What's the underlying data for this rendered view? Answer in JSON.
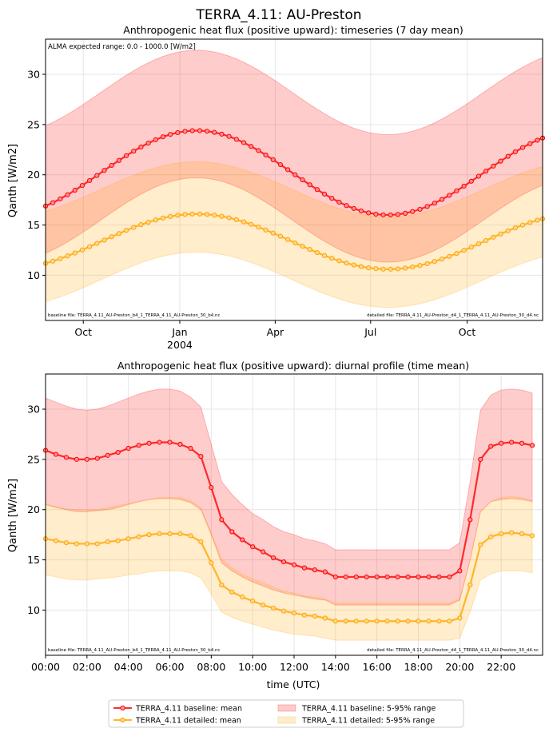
{
  "figure": {
    "suptitle": "TERRA_4.11: AU-Preston",
    "legend": {
      "placement": "bottom-center",
      "entries": [
        {
          "label": "TERRA_4.11 baseline: mean",
          "kind": "line",
          "color": "#ff0000"
        },
        {
          "label": "TERRA_4.11 detailed: mean",
          "kind": "line",
          "color": "#ffa500"
        },
        {
          "label": "TERRA_4.11 baseline: 5-95% range",
          "kind": "band",
          "color": "#ff0000"
        },
        {
          "label": "TERRA_4.11 detailed: 5-95% range",
          "kind": "band",
          "color": "#ffa500"
        }
      ]
    }
  },
  "chart_data": [
    {
      "type": "line",
      "title": "Anthropogenic heat flux (positive upward): timeseries (7 day mean)",
      "xlabel": "",
      "ylabel": "Qanth [W/m2]",
      "annotation": "ALMA expected range: 0.0 - 1000.0 [W/m2]",
      "baseline_file": "baseline file: TERRA_4.11_AU-Preston_b4_1_TERRA_4.11_AU-Preston_30_b4.nc",
      "detailed_file": "detailed file: TERRA_4.11_AU-Preston_d4_1_TERRA_4.11_AU-Preston_30_d4.nc",
      "x_unit": "days since 2003-08-26",
      "xlim": [
        0,
        474
      ],
      "ylim": [
        5.5,
        33.5
      ],
      "yticks": [
        10,
        15,
        20,
        25,
        30
      ],
      "xticks": [
        {
          "x": 36,
          "label": "Oct",
          "sub": ""
        },
        {
          "x": 128,
          "label": "Jan",
          "sub": "2004"
        },
        {
          "x": 219,
          "label": "Apr",
          "sub": ""
        },
        {
          "x": 310,
          "label": "Jul",
          "sub": ""
        },
        {
          "x": 402,
          "label": "Oct",
          "sub": ""
        }
      ],
      "grid": true,
      "series": [
        {
          "name": "TERRA_4.11 baseline: mean",
          "color": "#ff0000",
          "mean": {
            "offset": 20.2,
            "amp": 4.2,
            "phase_day": 144,
            "period": 365
          },
          "band": {
            "lower_offset": -4.7,
            "upper_offset": 8.0
          }
        },
        {
          "name": "TERRA_4.11 detailed: mean",
          "color": "#ffa500",
          "mean": {
            "offset": 13.35,
            "amp": 2.75,
            "phase_day": 144,
            "period": 365
          },
          "band": {
            "lower_offset": -3.8,
            "upper_offset": 5.2
          }
        }
      ]
    },
    {
      "type": "line",
      "title": "Anthropogenic heat flux (positive upward): diurnal profile (time mean)",
      "xlabel": "time (UTC)",
      "ylabel": "Qanth [W/m2]",
      "baseline_file": "baseline file: TERRA_4.11_AU-Preston_b4_1_TERRA_4.11_AU-Preston_30_b4.nc",
      "detailed_file": "detailed file: TERRA_4.11_AU-Preston_d4_1_TERRA_4.11_AU-Preston_30_d4.nc",
      "xlim": [
        0,
        24
      ],
      "ylim": [
        5.5,
        33.5
      ],
      "yticks": [
        10,
        15,
        20,
        25,
        30
      ],
      "xticks": [
        {
          "x": 0,
          "label": "00:00"
        },
        {
          "x": 2,
          "label": "02:00"
        },
        {
          "x": 4,
          "label": "04:00"
        },
        {
          "x": 6,
          "label": "06:00"
        },
        {
          "x": 8,
          "label": "08:00"
        },
        {
          "x": 10,
          "label": "10:00"
        },
        {
          "x": 12,
          "label": "12:00"
        },
        {
          "x": 14,
          "label": "14:00"
        },
        {
          "x": 16,
          "label": "16:00"
        },
        {
          "x": 18,
          "label": "18:00"
        },
        {
          "x": 20,
          "label": "20:00"
        },
        {
          "x": 22,
          "label": "22:00"
        }
      ],
      "grid": true,
      "x": [
        0,
        0.5,
        1,
        1.5,
        2,
        2.5,
        3,
        3.5,
        4,
        4.5,
        5,
        5.5,
        6,
        6.5,
        7,
        7.5,
        8,
        8.5,
        9,
        9.5,
        10,
        10.5,
        11,
        11.5,
        12,
        12.5,
        13,
        13.5,
        14,
        14.5,
        15,
        15.5,
        16,
        16.5,
        17,
        17.5,
        18,
        18.5,
        19,
        19.5,
        20,
        20.5,
        21,
        21.5,
        22,
        22.5,
        23,
        23.5
      ],
      "series": [
        {
          "name": "TERRA_4.11 baseline: mean",
          "color": "#ff0000",
          "values": [
            25.9,
            25.5,
            25.2,
            25.0,
            25.0,
            25.1,
            25.4,
            25.7,
            26.1,
            26.4,
            26.6,
            26.7,
            26.7,
            26.5,
            26.1,
            25.3,
            22.2,
            19.0,
            17.8,
            17.0,
            16.3,
            15.8,
            15.2,
            14.8,
            14.5,
            14.2,
            14.0,
            13.8,
            13.3,
            13.3,
            13.3,
            13.3,
            13.3,
            13.3,
            13.3,
            13.3,
            13.3,
            13.3,
            13.3,
            13.3,
            13.9,
            19.0,
            25.0,
            26.3,
            26.6,
            26.7,
            26.6,
            26.4
          ],
          "lower": [
            20.5,
            20.2,
            20.0,
            19.8,
            19.8,
            19.9,
            20.0,
            20.2,
            20.5,
            20.8,
            21.0,
            21.1,
            21.1,
            21.0,
            20.7,
            20.0,
            17.5,
            14.7,
            13.9,
            13.3,
            12.8,
            12.4,
            12.0,
            11.7,
            11.5,
            11.3,
            11.1,
            11.0,
            10.5,
            10.5,
            10.5,
            10.5,
            10.5,
            10.5,
            10.5,
            10.5,
            10.5,
            10.5,
            10.5,
            10.5,
            11.0,
            15.0,
            19.8,
            20.8,
            21.0,
            21.1,
            21.0,
            20.8
          ],
          "upper": [
            31.1,
            30.7,
            30.3,
            30.0,
            29.9,
            30.0,
            30.3,
            30.7,
            31.1,
            31.5,
            31.8,
            32.0,
            32.0,
            31.8,
            31.2,
            30.2,
            26.5,
            22.8,
            21.5,
            20.5,
            19.6,
            19.0,
            18.3,
            17.8,
            17.5,
            17.1,
            16.9,
            16.6,
            16.0,
            16.0,
            16.0,
            16.0,
            16.0,
            16.0,
            16.0,
            16.0,
            16.0,
            16.0,
            16.0,
            16.0,
            16.7,
            22.8,
            29.9,
            31.4,
            31.9,
            32.0,
            31.9,
            31.6
          ]
        },
        {
          "name": "TERRA_4.11 detailed: mean",
          "color": "#ffa500",
          "values": [
            17.1,
            16.9,
            16.7,
            16.6,
            16.6,
            16.6,
            16.8,
            16.9,
            17.1,
            17.3,
            17.5,
            17.6,
            17.6,
            17.6,
            17.4,
            16.8,
            14.7,
            12.5,
            11.8,
            11.3,
            10.9,
            10.5,
            10.2,
            9.9,
            9.7,
            9.5,
            9.4,
            9.2,
            8.9,
            8.9,
            8.9,
            8.9,
            8.9,
            8.9,
            8.9,
            8.9,
            8.9,
            8.9,
            8.9,
            8.9,
            9.2,
            12.5,
            16.5,
            17.3,
            17.6,
            17.7,
            17.6,
            17.4
          ],
          "lower": [
            13.5,
            13.3,
            13.1,
            13.0,
            13.0,
            13.1,
            13.2,
            13.3,
            13.5,
            13.6,
            13.8,
            13.9,
            13.9,
            13.9,
            13.7,
            13.2,
            11.6,
            9.8,
            9.3,
            8.9,
            8.6,
            8.3,
            8.0,
            7.8,
            7.6,
            7.5,
            7.4,
            7.2,
            7.0,
            7.0,
            7.0,
            7.0,
            7.0,
            7.0,
            7.0,
            7.0,
            7.0,
            7.0,
            7.0,
            7.0,
            7.2,
            9.8,
            13.0,
            13.6,
            13.9,
            13.9,
            13.9,
            13.7
          ],
          "upper": [
            20.6,
            20.3,
            20.1,
            20.0,
            20.0,
            20.0,
            20.2,
            20.4,
            20.6,
            20.8,
            21.0,
            21.2,
            21.2,
            21.2,
            20.9,
            20.2,
            17.7,
            15.1,
            14.2,
            13.6,
            13.1,
            12.7,
            12.3,
            11.9,
            11.7,
            11.4,
            11.3,
            11.1,
            10.7,
            10.7,
            10.7,
            10.7,
            10.7,
            10.7,
            10.7,
            10.7,
            10.7,
            10.7,
            10.7,
            10.7,
            11.1,
            15.0,
            19.8,
            20.8,
            21.2,
            21.3,
            21.2,
            20.9
          ]
        }
      ]
    }
  ]
}
